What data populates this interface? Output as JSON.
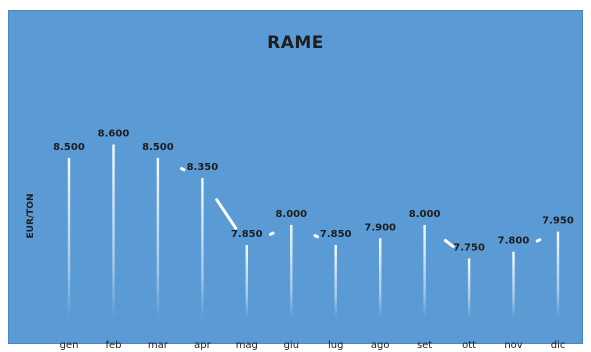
{
  "chart_data": {
    "type": "line",
    "title": "RAME",
    "xlabel": "",
    "ylabel": "EUR/TON",
    "categories": [
      "gen",
      "feb",
      "mar",
      "apr",
      "mag",
      "giu",
      "lug",
      "ago",
      "set",
      "ott",
      "nov",
      "dic"
    ],
    "series": [
      {
        "values": [
          8500,
          8600,
          8500,
          8350,
          7850,
          8000,
          7850,
          7900,
          8000,
          7750,
          7800,
          7950
        ],
        "labels": [
          "8.500",
          "8.600",
          "8.500",
          "8.350",
          "7.850",
          "8.000",
          "7.850",
          "7.900",
          "8.000",
          "7.750",
          "7.800",
          "7.950"
        ]
      }
    ],
    "grid": false,
    "legend": "none",
    "colors": {
      "background": "#5b9bd5",
      "line": "#ffffff",
      "text": "#1e1e1e"
    }
  }
}
